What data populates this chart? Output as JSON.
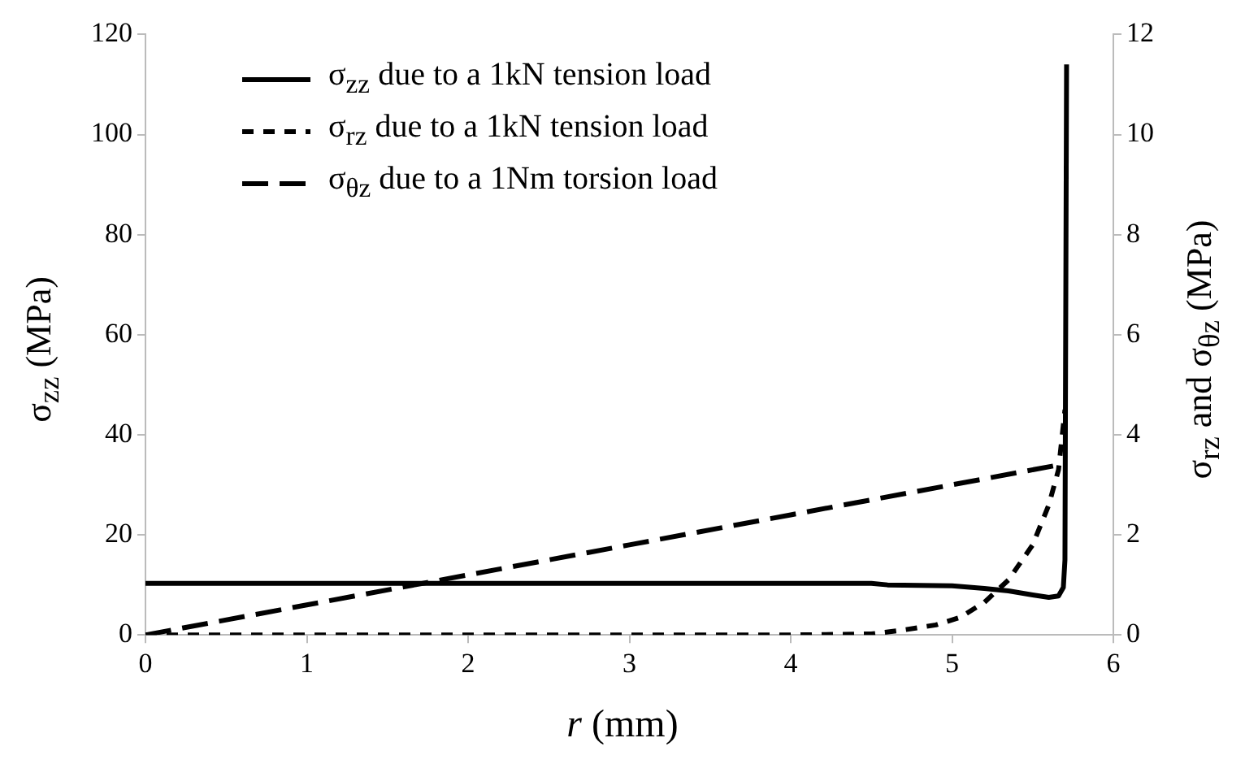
{
  "chart_data": {
    "type": "line",
    "xlabel": "r (mm)",
    "ylabel": "σ$_{zz}$ (MPa)",
    "y2label": "σ$_{rz}$ and σ$_{θz}$ (MPa)",
    "xlim": [
      0,
      6
    ],
    "xticks": [
      0,
      1,
      2,
      3,
      4,
      5,
      6
    ],
    "ylim": [
      0,
      120
    ],
    "yticks": [
      0,
      20,
      40,
      60,
      80,
      100,
      120
    ],
    "y2lim": [
      0,
      12
    ],
    "y2ticks": [
      0,
      2,
      4,
      6,
      8,
      10,
      12
    ],
    "grid": false,
    "legend": "top left",
    "marker": "none",
    "series": [
      {
        "name": "σ$_{zz}$ due to a 1kN tension load",
        "color": "#000000",
        "line_style": "solid",
        "x": [
          0,
          1,
          2,
          3,
          4,
          4.5,
          4.6,
          5,
          5.2,
          5.35,
          5.5,
          5.6,
          5.66,
          5.69,
          5.7,
          5.71
        ],
        "values": [
          10.3,
          10.3,
          10.3,
          10.3,
          10.3,
          10.3,
          10,
          9.8,
          9.3,
          8.8,
          8,
          7.5,
          7.8,
          9.5,
          15,
          114
        ]
      },
      {
        "name": "σ$_{rz}$ due to a 1kN tension load",
        "color": "#000000",
        "line_style": "dotted",
        "axis": "y2",
        "x": [
          0,
          1,
          2,
          3,
          4,
          4.5,
          4.7,
          4.9,
          5.05,
          5.2,
          5.35,
          5.5,
          5.6,
          5.66,
          5.7
        ],
        "values": [
          0,
          0,
          0,
          0,
          0,
          0.02,
          0.1,
          0.2,
          0.35,
          0.65,
          1.1,
          1.8,
          2.6,
          3.3,
          4.5
        ]
      },
      {
        "name": "σ$_{θz}$ due to a 1Nm torsion load",
        "color": "#000000",
        "line_style": "dashed",
        "axis": "y2",
        "x": [
          0,
          1,
          2,
          3,
          4,
          5,
          5.7
        ],
        "values": [
          0,
          0.6,
          1.2,
          1.8,
          2.4,
          3.0,
          3.42
        ]
      }
    ]
  }
}
